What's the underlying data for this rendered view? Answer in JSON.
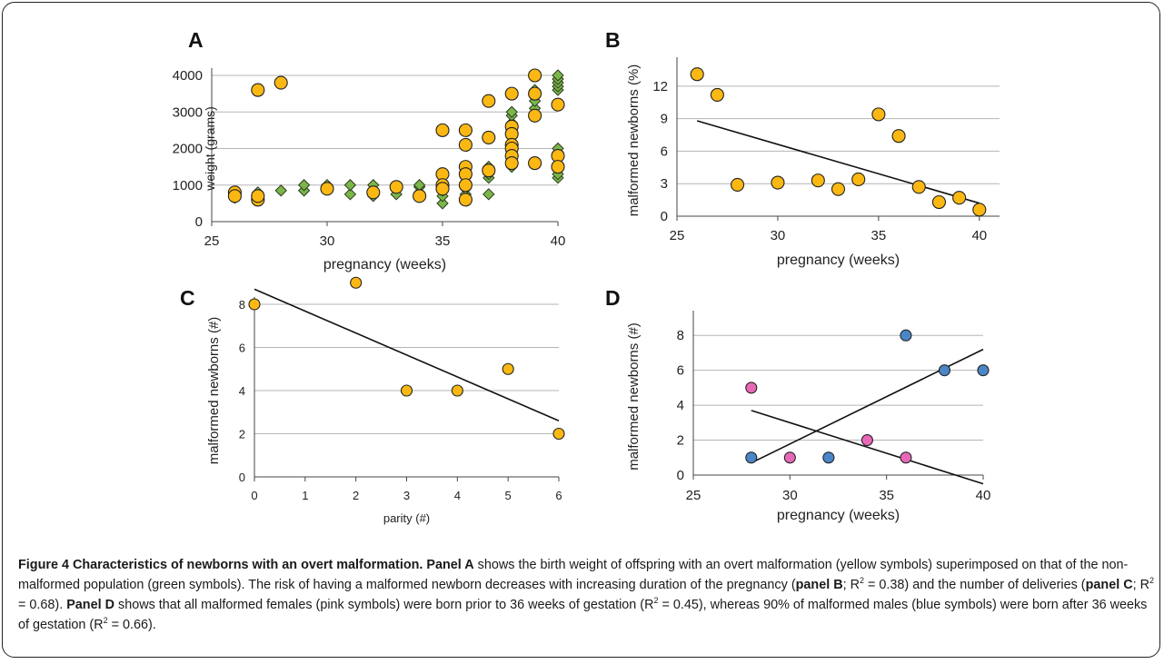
{
  "figure": {
    "caption_title": "Figure 4 Characteristics of newborns with an overt malformation.",
    "caption_parts": [
      {
        "text": "Panel A",
        "bold": true
      },
      {
        "text": " shows the birth weight of offspring with an overt malformation (yellow symbols) superimposed on that of the non-malformed population (green symbols). The risk of having a malformed newborn decreases with increasing duration of the pregnancy (",
        "bold": false
      },
      {
        "text": "panel B",
        "bold": true
      },
      {
        "text": "; R",
        "bold": false
      },
      {
        "text": "2",
        "sup": true
      },
      {
        "text": " = 0.38) and the number of deliveries (",
        "bold": false
      },
      {
        "text": "panel C",
        "bold": true
      },
      {
        "text": "; R",
        "bold": false
      },
      {
        "text": "2",
        "sup": true
      },
      {
        "text": " = 0.68). ",
        "bold": false
      },
      {
        "text": "Panel D",
        "bold": true
      },
      {
        "text": " shows that all malformed females (pink symbols) were born prior to 36 weeks of gestation (R",
        "bold": false
      },
      {
        "text": "2",
        "sup": true
      },
      {
        "text": " = 0.45), whereas 90% of malformed males (blue symbols) were born after 36 weeks of gestation (R",
        "bold": false
      },
      {
        "text": "2",
        "sup": true
      },
      {
        "text": " = 0.66).",
        "bold": false
      }
    ]
  },
  "colors": {
    "yellow": "#fbb812",
    "green": "#7ab648",
    "pink": "#e868b8",
    "blue": "#4a86c8",
    "grid": "#b5b5b5",
    "axis": "#444444"
  },
  "chart_data": [
    {
      "panel": "A",
      "type": "scatter",
      "xlabel": "pregnancy (weeks)",
      "ylabel": "weight (grams)",
      "xlim": [
        25,
        40
      ],
      "ylim": [
        0,
        4000
      ],
      "xticks": [
        25,
        30,
        35,
        40
      ],
      "yticks": [
        0,
        1000,
        2000,
        3000,
        4000
      ],
      "grid": "horizontal",
      "series": [
        {
          "marker": "diamond",
          "color": "green",
          "points": [
            [
              26,
              650
            ],
            [
              26,
              750
            ],
            [
              27,
              800
            ],
            [
              27,
              700
            ],
            [
              28,
              850
            ],
            [
              29,
              850
            ],
            [
              29,
              1000
            ],
            [
              30,
              1000
            ],
            [
              30,
              900
            ],
            [
              31,
              750
            ],
            [
              31,
              1000
            ],
            [
              32,
              700
            ],
            [
              32,
              850
            ],
            [
              32,
              1000
            ],
            [
              33,
              750
            ],
            [
              33,
              950
            ],
            [
              34,
              800
            ],
            [
              34,
              950
            ],
            [
              34,
              1000
            ],
            [
              35,
              500
            ],
            [
              35,
              700
            ],
            [
              35,
              850
            ],
            [
              35,
              950
            ],
            [
              35,
              1050
            ],
            [
              36,
              600
            ],
            [
              36,
              750
            ],
            [
              36,
              900
            ],
            [
              36,
              1000
            ],
            [
              36,
              1200
            ],
            [
              37,
              750
            ],
            [
              37,
              1200
            ],
            [
              37,
              1300
            ],
            [
              37,
              1400
            ],
            [
              37,
              1500
            ],
            [
              38,
              1500
            ],
            [
              38,
              1600
            ],
            [
              38,
              1700
            ],
            [
              38,
              1800
            ],
            [
              38,
              1900
            ],
            [
              38,
              2000
            ],
            [
              38,
              2100
            ],
            [
              38,
              2300
            ],
            [
              38,
              2500
            ],
            [
              38,
              2700
            ],
            [
              38,
              2900
            ],
            [
              38,
              3000
            ],
            [
              39,
              1600
            ],
            [
              39,
              3100
            ],
            [
              39,
              3300
            ],
            [
              39,
              3500
            ],
            [
              39,
              3600
            ],
            [
              40,
              1200
            ],
            [
              40,
              1300
            ],
            [
              40,
              1500
            ],
            [
              40,
              1900
            ],
            [
              40,
              2000
            ],
            [
              40,
              3600
            ],
            [
              40,
              3700
            ],
            [
              40,
              3800
            ],
            [
              40,
              3900
            ],
            [
              40,
              4000
            ]
          ]
        },
        {
          "marker": "circle",
          "color": "yellow",
          "points": [
            [
              26,
              800
            ],
            [
              26,
              700
            ],
            [
              27,
              3600
            ],
            [
              27,
              600
            ],
            [
              27,
              700
            ],
            [
              28,
              3800
            ],
            [
              30,
              900
            ],
            [
              32,
              800
            ],
            [
              33,
              950
            ],
            [
              34,
              700
            ],
            [
              35,
              2500
            ],
            [
              35,
              1300
            ],
            [
              35,
              1000
            ],
            [
              35,
              900
            ],
            [
              36,
              2500
            ],
            [
              36,
              2100
            ],
            [
              36,
              1500
            ],
            [
              36,
              1300
            ],
            [
              36,
              1000
            ],
            [
              36,
              600
            ],
            [
              37,
              3300
            ],
            [
              37,
              2300
            ],
            [
              37,
              1400
            ],
            [
              38,
              3500
            ],
            [
              38,
              2600
            ],
            [
              38,
              2400
            ],
            [
              38,
              2100
            ],
            [
              38,
              2000
            ],
            [
              38,
              1800
            ],
            [
              38,
              1600
            ],
            [
              39,
              4000
            ],
            [
              39,
              3500
            ],
            [
              39,
              2900
            ],
            [
              39,
              1600
            ],
            [
              40,
              3200
            ],
            [
              40,
              1800
            ],
            [
              40,
              1500
            ]
          ]
        }
      ]
    },
    {
      "panel": "B",
      "type": "scatter",
      "xlabel": "pregnancy (weeks)",
      "ylabel": "malformed newborns (%)",
      "xlim": [
        25,
        41
      ],
      "ylim": [
        0,
        14
      ],
      "xticks": [
        25,
        30,
        35,
        40
      ],
      "yticks": [
        0,
        3,
        6,
        9,
        12
      ],
      "grid": "horizontal",
      "series": [
        {
          "marker": "circle",
          "color": "yellow",
          "points": [
            [
              26,
              13.1
            ],
            [
              27,
              11.2
            ],
            [
              28,
              2.9
            ],
            [
              30,
              3.1
            ],
            [
              32,
              3.3
            ],
            [
              33,
              2.5
            ],
            [
              34,
              3.4
            ],
            [
              35,
              9.4
            ],
            [
              36,
              7.4
            ],
            [
              37,
              2.7
            ],
            [
              38,
              1.3
            ],
            [
              39,
              1.7
            ],
            [
              40,
              0.6
            ]
          ]
        }
      ],
      "trendlines": [
        {
          "from": [
            26,
            8.8
          ],
          "to": [
            40,
            1.2
          ]
        }
      ]
    },
    {
      "panel": "C",
      "type": "scatter",
      "xlabel": "parity (#)",
      "ylabel": "malformed newborns (#)",
      "xlim": [
        0,
        6
      ],
      "ylim": [
        0,
        8
      ],
      "xticks": [
        0,
        1,
        2,
        3,
        4,
        5,
        6
      ],
      "yticks": [
        0,
        2,
        4,
        6,
        8
      ],
      "grid": "horizontal",
      "series": [
        {
          "marker": "circle",
          "color": "yellow",
          "points": [
            [
              0,
              8
            ],
            [
              2,
              9
            ],
            [
              3,
              4
            ],
            [
              4,
              4
            ],
            [
              5,
              5
            ],
            [
              6,
              2
            ]
          ]
        }
      ],
      "trendlines": [
        {
          "from": [
            0,
            8.7
          ],
          "to": [
            6,
            2.6
          ]
        }
      ]
    },
    {
      "panel": "D",
      "type": "scatter",
      "xlabel": "pregnancy (weeks)",
      "ylabel": "malformed newborns (#)",
      "xlim": [
        25,
        40
      ],
      "ylim": [
        0,
        9
      ],
      "xticks": [
        25,
        30,
        35,
        40
      ],
      "yticks": [
        0,
        2,
        4,
        6,
        8
      ],
      "grid": "horizontal",
      "series": [
        {
          "marker": "circle",
          "color": "pink",
          "points": [
            [
              28,
              5
            ],
            [
              30,
              1
            ],
            [
              34,
              2
            ],
            [
              36,
              1
            ]
          ]
        },
        {
          "marker": "circle",
          "color": "blue",
          "points": [
            [
              28,
              1
            ],
            [
              32,
              1
            ],
            [
              36,
              8
            ],
            [
              38,
              6
            ],
            [
              40,
              6
            ]
          ]
        }
      ],
      "trendlines": [
        {
          "from": [
            28,
            3.7
          ],
          "to": [
            40,
            -0.5
          ]
        },
        {
          "from": [
            28,
            0.7
          ],
          "to": [
            40,
            7.2
          ]
        }
      ]
    }
  ]
}
